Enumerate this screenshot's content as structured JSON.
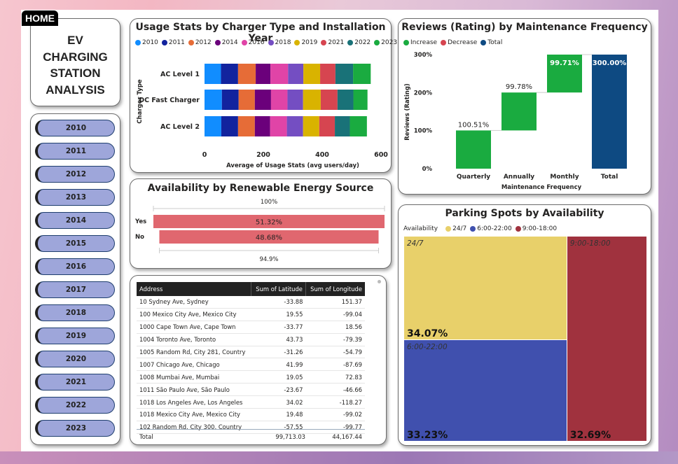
{
  "home_button": "HOME",
  "title": "EV CHARGING STATION ANALYSIS",
  "title_lines": [
    "EV",
    "CHARGING",
    "STATION",
    "ANALYSIS"
  ],
  "years": [
    "2010",
    "2011",
    "2012",
    "2013",
    "2014",
    "2015",
    "2016",
    "2017",
    "2018",
    "2019",
    "2020",
    "2021",
    "2022",
    "2023"
  ],
  "chart_data": [
    {
      "id": "usage",
      "type": "bar",
      "orientation": "horizontal-stacked",
      "title": "Usage Stats by Charger Type and Installation Year",
      "xlabel": "Average of Usage Stats (avg users/day)",
      "ylabel": "Charger Type",
      "xlim": [
        0,
        600
      ],
      "xticks": [
        "0",
        "200",
        "400",
        "600"
      ],
      "categories": [
        "AC Level 1",
        "DC Fast Charger",
        "AC Level 2"
      ],
      "series": [
        {
          "name": "2010",
          "color": "#118dff",
          "values": [
            56,
            59,
            57
          ]
        },
        {
          "name": "2011",
          "color": "#12239e",
          "values": [
            58,
            57,
            57
          ]
        },
        {
          "name": "2012",
          "color": "#e66c37",
          "values": [
            60,
            55,
            57
          ]
        },
        {
          "name": "2014",
          "color": "#6b007b",
          "values": [
            50,
            55,
            52
          ]
        },
        {
          "name": "2016",
          "color": "#e044a7",
          "values": [
            60,
            56,
            57
          ]
        },
        {
          "name": "2018",
          "color": "#744ec2",
          "values": [
            52,
            53,
            55
          ]
        },
        {
          "name": "2019",
          "color": "#d9b300",
          "values": [
            57,
            60,
            55
          ]
        },
        {
          "name": "2021",
          "color": "#d64550",
          "values": [
            52,
            57,
            53
          ]
        },
        {
          "name": "2022",
          "color": "#197278",
          "values": [
            60,
            54,
            51
          ]
        },
        {
          "name": "2023",
          "color": "#1aab40",
          "values": [
            60,
            48,
            58
          ]
        }
      ]
    },
    {
      "id": "availability",
      "type": "bar",
      "orientation": "funnel",
      "title": "Availability by Renewable Energy Source",
      "categories": [
        "Yes",
        "No"
      ],
      "values_pct": [
        51.32,
        48.68
      ],
      "labels": [
        "51.32%",
        "48.68%"
      ],
      "top_label": "100%",
      "bottom_label": "94.9%",
      "color": "#e0676f"
    },
    {
      "id": "reviews",
      "type": "bar",
      "orientation": "waterfall",
      "title": "Reviews (Rating) by Maintenance Frequency",
      "xlabel": "Maintenance Frequency",
      "ylabel": "Reviews (Rating)",
      "ylim": [
        0,
        300
      ],
      "yticks": [
        "0%",
        "100%",
        "200%",
        "300%"
      ],
      "legend": [
        {
          "name": "Increase",
          "color": "#1aab40"
        },
        {
          "name": "Decrease",
          "color": "#d64550"
        },
        {
          "name": "Total",
          "color": "#0e4a82"
        }
      ],
      "categories": [
        "Quarterly",
        "Annually",
        "Monthly",
        "Total"
      ],
      "values": [
        100.51,
        99.78,
        99.71,
        300.0
      ],
      "labels": [
        "100.51%",
        "99.78%",
        "99.71%",
        "300.00%"
      ],
      "kinds": [
        "increase",
        "increase",
        "increase",
        "total"
      ]
    },
    {
      "id": "parking",
      "type": "heatmap",
      "subtype": "treemap",
      "title": "Parking Spots by Availability",
      "legend_title": "Availability",
      "items": [
        {
          "name": "24/7",
          "value": 34.07,
          "label": "34.07%",
          "color": "#e8d06a"
        },
        {
          "name": "6:00-22:00",
          "value": 33.23,
          "label": "33.23%",
          "color": "#4050ae"
        },
        {
          "name": "9:00-18:00",
          "value": 32.69,
          "label": "32.69%",
          "color": "#a0323e"
        }
      ]
    }
  ],
  "table": {
    "columns": [
      "Address",
      "Sum of Latitude",
      "Sum of Longitude"
    ],
    "rows": [
      [
        "10 Sydney Ave, Sydney",
        "-33.88",
        "151.37"
      ],
      [
        "100 Mexico City Ave, Mexico City",
        "19.55",
        "-99.04"
      ],
      [
        "1000 Cape Town Ave, Cape Town",
        "-33.77",
        "18.56"
      ],
      [
        "1004 Toronto Ave, Toronto",
        "43.73",
        "-79.39"
      ],
      [
        "1005 Random Rd, City 281, Country",
        "-31.26",
        "-54.79"
      ],
      [
        "1007 Chicago Ave, Chicago",
        "41.99",
        "-87.69"
      ],
      [
        "1008 Mumbai Ave, Mumbai",
        "19.05",
        "72.83"
      ],
      [
        "1011 São Paulo Ave, São Paulo",
        "-23.67",
        "-46.66"
      ],
      [
        "1018 Los Angeles Ave, Los Angeles",
        "34.02",
        "-118.27"
      ],
      [
        "1018 Mexico City Ave, Mexico City",
        "19.48",
        "-99.02"
      ],
      [
        "102 Random Rd, City 300, Country",
        "-57.55",
        "-99.77"
      ]
    ],
    "total": [
      "Total",
      "99,713.03",
      "44,167.44"
    ]
  }
}
